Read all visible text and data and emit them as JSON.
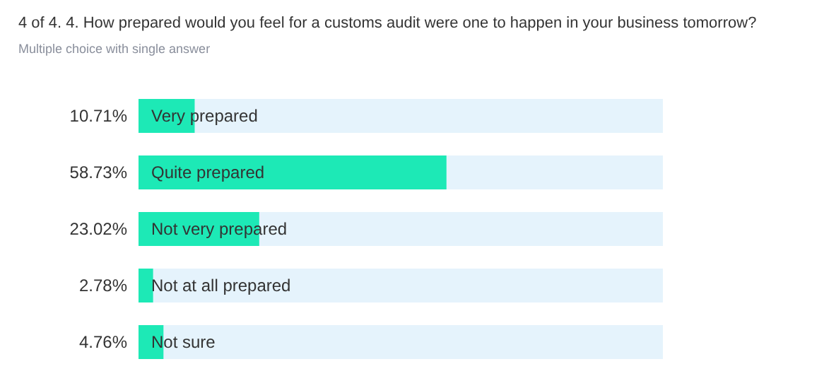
{
  "chart_data": {
    "type": "bar",
    "orientation": "horizontal",
    "title": "4 of 4. 4. How prepared would you feel for a customs audit were one to happen in your business tomorrow?",
    "subtitle": "Multiple choice with single answer",
    "categories": [
      "Very prepared",
      "Quite prepared",
      "Not very prepared",
      "Not at all prepared",
      "Not sure"
    ],
    "values": [
      10.71,
      58.73,
      23.02,
      2.78,
      4.76
    ],
    "value_labels": [
      "10.71%",
      "58.73%",
      "23.02%",
      "2.78%",
      "4.76%"
    ],
    "color": "#1de9b6",
    "xlim": [
      0,
      100
    ]
  }
}
